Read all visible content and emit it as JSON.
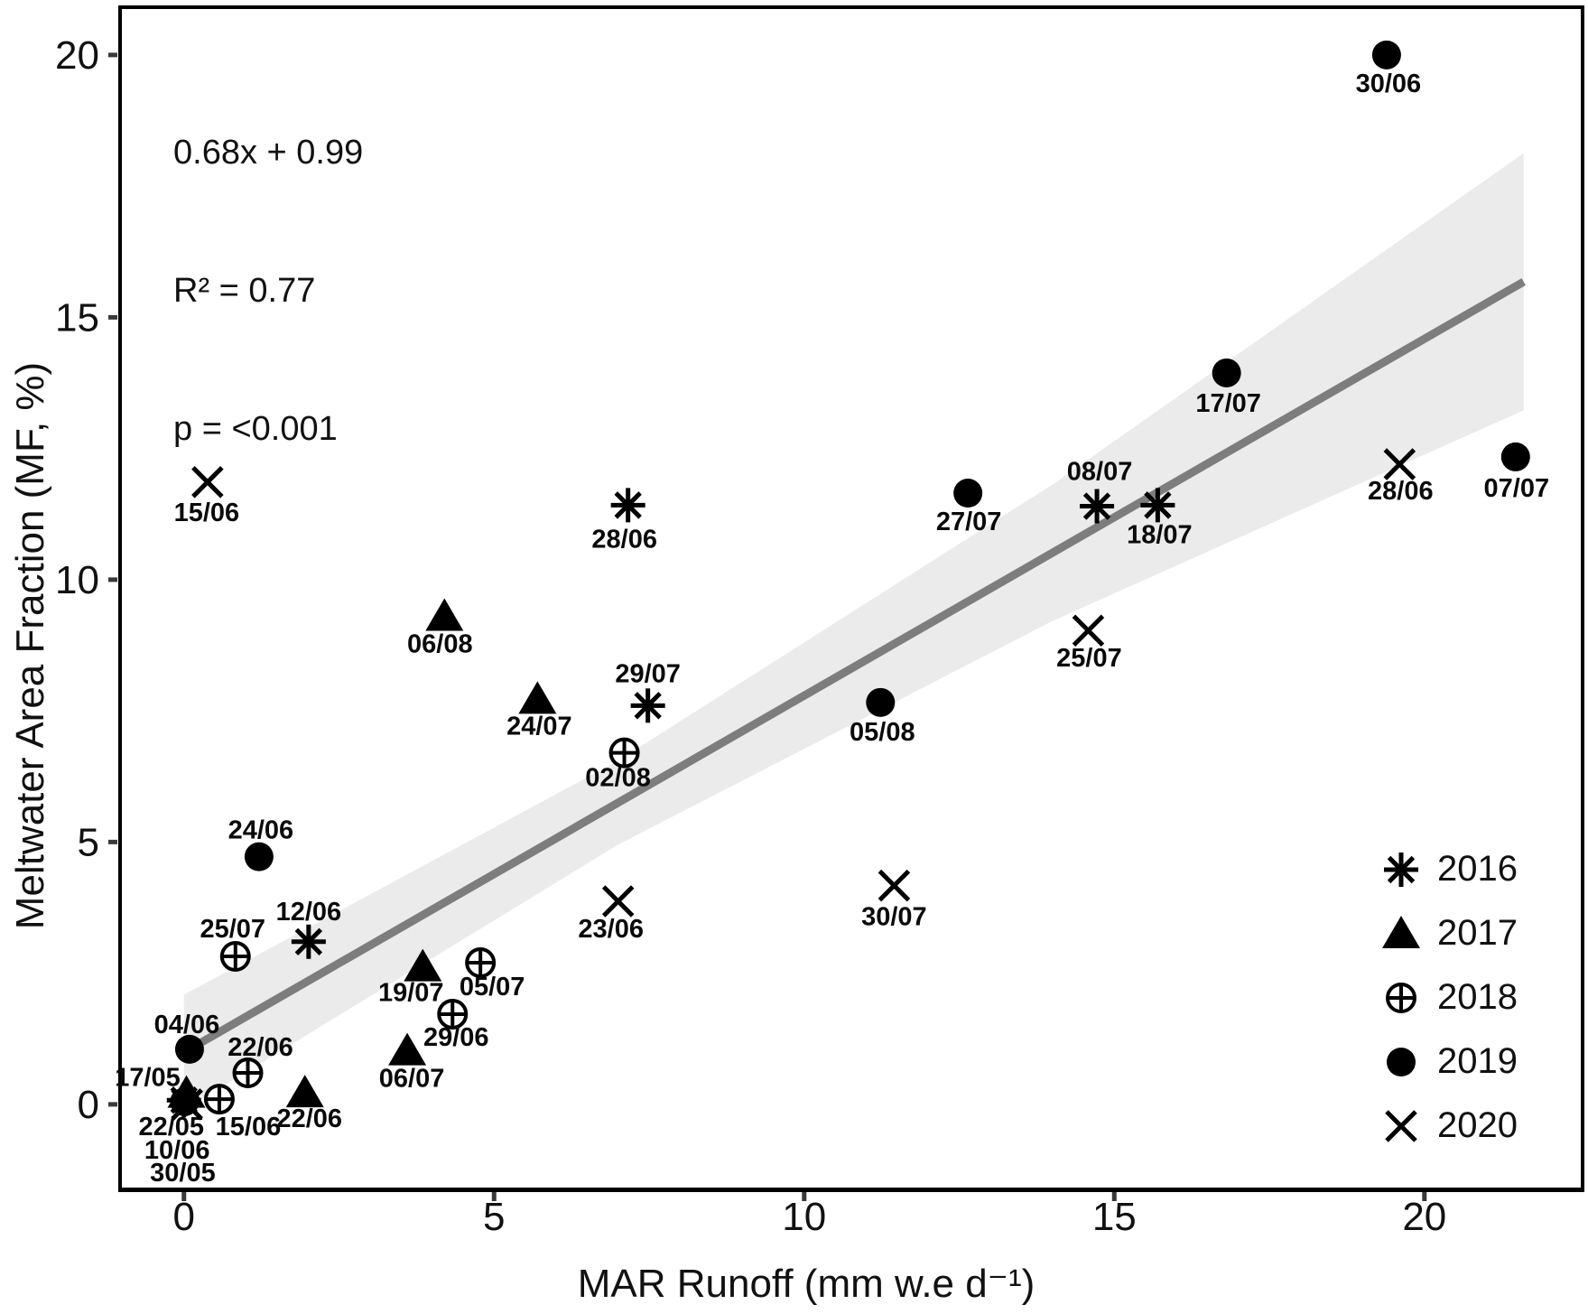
{
  "annotation": {
    "equation": "0.68x + 0.99",
    "r_squared": "R² = 0.77",
    "p_value": "p = <0.001"
  },
  "axes": {
    "x_title": "MAR Runoff (mm w.e d⁻¹)",
    "y_title": "Meltwater Area Fraction (MF, %)"
  },
  "legend": {
    "items": [
      {
        "label": "2016",
        "marker": "asterisk"
      },
      {
        "label": "2017",
        "marker": "triangle"
      },
      {
        "label": "2018",
        "marker": "circle-plus"
      },
      {
        "label": "2019",
        "marker": "circle"
      },
      {
        "label": "2020",
        "marker": "x"
      }
    ]
  },
  "colors": {
    "marker": "#000000",
    "regression_line": "#7d7d7d",
    "confidence_band": "#ebebeb",
    "panel_border": "#000000",
    "tick": "#3a3a3a"
  },
  "chart_data": {
    "type": "scatter",
    "title": "",
    "xlabel": "MAR Runoff (mm w.e d⁻¹)",
    "ylabel": "Meltwater Area Fraction (MF, %)",
    "xlim": [
      -1.03,
      22.55
    ],
    "ylim": [
      -1.62,
      20.91
    ],
    "x_ticks": [
      0,
      5,
      10,
      15,
      20
    ],
    "y_ticks": [
      0,
      5,
      10,
      15,
      20
    ],
    "grid": false,
    "legend_position": "lower right inside",
    "regression": {
      "slope": 0.68,
      "intercept": 0.99,
      "x_start": 0,
      "x_end": 21.6,
      "band": [
        {
          "x": 0.0,
          "half": 1.1
        },
        {
          "x": 7.0,
          "half": 0.8
        },
        {
          "x": 14.0,
          "half": 1.3
        },
        {
          "x": 21.6,
          "half": 2.45
        }
      ]
    },
    "series": [
      {
        "name": "2016",
        "marker": "asterisk",
        "points": [
          {
            "date": "22/05",
            "x": 0.0,
            "y": 0.08,
            "dx": -14,
            "dy": 30
          },
          {
            "date": "12/06",
            "x": 2.01,
            "y": 3.1,
            "dx": 0,
            "dy": -33
          },
          {
            "date": "28/06",
            "x": 7.16,
            "y": 11.42,
            "dx": -4,
            "dy": 38
          },
          {
            "date": "29/07",
            "x": 7.48,
            "y": 7.6,
            "dx": 0,
            "dy": -35
          },
          {
            "date": "08/07",
            "x": 14.72,
            "y": 11.4,
            "dx": 3,
            "dy": -38
          },
          {
            "date": "18/07",
            "x": 15.7,
            "y": 11.42,
            "dx": 2,
            "dy": 33
          }
        ]
      },
      {
        "name": "2017",
        "marker": "triangle",
        "points": [
          {
            "date": "17/05",
            "x": 0.04,
            "y": 0.21,
            "dx": -43,
            "dy": -17
          },
          {
            "date": "22/06",
            "x": 1.95,
            "y": 0.22,
            "dx": 5,
            "dy": 29
          },
          {
            "date": "06/07",
            "x": 3.6,
            "y": 1.02,
            "dx": 5,
            "dy": 31
          },
          {
            "date": "19/07",
            "x": 3.85,
            "y": 2.62,
            "dx": -13,
            "dy": 29
          },
          {
            "date": "24/07",
            "x": 5.7,
            "y": 7.72,
            "dx": 2,
            "dy": 30
          },
          {
            "date": "06/08",
            "x": 4.2,
            "y": 9.3,
            "dx": -5,
            "dy": 31
          }
        ]
      },
      {
        "name": "2018",
        "marker": "circle-plus",
        "points": [
          {
            "date": "15/06",
            "x": 0.57,
            "y": 0.1,
            "dx": 32,
            "dy": 31
          },
          {
            "date": "22/06",
            "x": 1.03,
            "y": 0.6,
            "dx": 14,
            "dy": -28
          },
          {
            "date": "29/06",
            "x": 4.33,
            "y": 1.72,
            "dx": 4,
            "dy": 26
          },
          {
            "date": "05/07",
            "x": 4.78,
            "y": 2.7,
            "dx": 13,
            "dy": 27
          },
          {
            "date": "25/07",
            "x": 0.83,
            "y": 2.82,
            "dx": -3,
            "dy": -30
          },
          {
            "date": "02/08",
            "x": 7.1,
            "y": 6.7,
            "dx": -7,
            "dy": 28
          }
        ]
      },
      {
        "name": "2019",
        "marker": "circle",
        "points": [
          {
            "date": "30/05",
            "x": 0.01,
            "y": 0.05,
            "dx": -2,
            "dy": 79
          },
          {
            "date": "04/06",
            "x": 0.09,
            "y": 1.05,
            "dx": -3,
            "dy": -27
          },
          {
            "date": "24/06",
            "x": 1.21,
            "y": 4.72,
            "dx": 2,
            "dy": -29
          },
          {
            "date": "30/06",
            "x": 19.39,
            "y": 20.0,
            "dx": 2,
            "dy": 32
          },
          {
            "date": "07/07",
            "x": 21.47,
            "y": 12.34,
            "dx": 1,
            "dy": 35
          },
          {
            "date": "17/07",
            "x": 16.81,
            "y": 13.94,
            "dx": 2,
            "dy": 34
          },
          {
            "date": "27/07",
            "x": 12.64,
            "y": 11.65,
            "dx": 1,
            "dy": 32
          },
          {
            "date": "05/08",
            "x": 11.23,
            "y": 7.66,
            "dx": 2,
            "dy": 33
          }
        ]
      },
      {
        "name": "2020",
        "marker": "x",
        "points": [
          {
            "date": "10/06",
            "x": 0.05,
            "y": 0.0,
            "dx": -11,
            "dy": 51
          },
          {
            "date": "15/06",
            "x": 0.38,
            "y": 11.86,
            "dx": -1,
            "dy": 34
          },
          {
            "date": "23/06",
            "x": 7.0,
            "y": 3.87,
            "dx": -8,
            "dy": 31
          },
          {
            "date": "28/06",
            "x": 19.6,
            "y": 12.2,
            "dx": 1,
            "dy": 30
          },
          {
            "date": "25/07",
            "x": 14.58,
            "y": 9.03,
            "dx": 1,
            "dy": 31
          },
          {
            "date": "30/07",
            "x": 11.45,
            "y": 4.17,
            "dx": 0,
            "dy": 35
          }
        ]
      }
    ]
  }
}
